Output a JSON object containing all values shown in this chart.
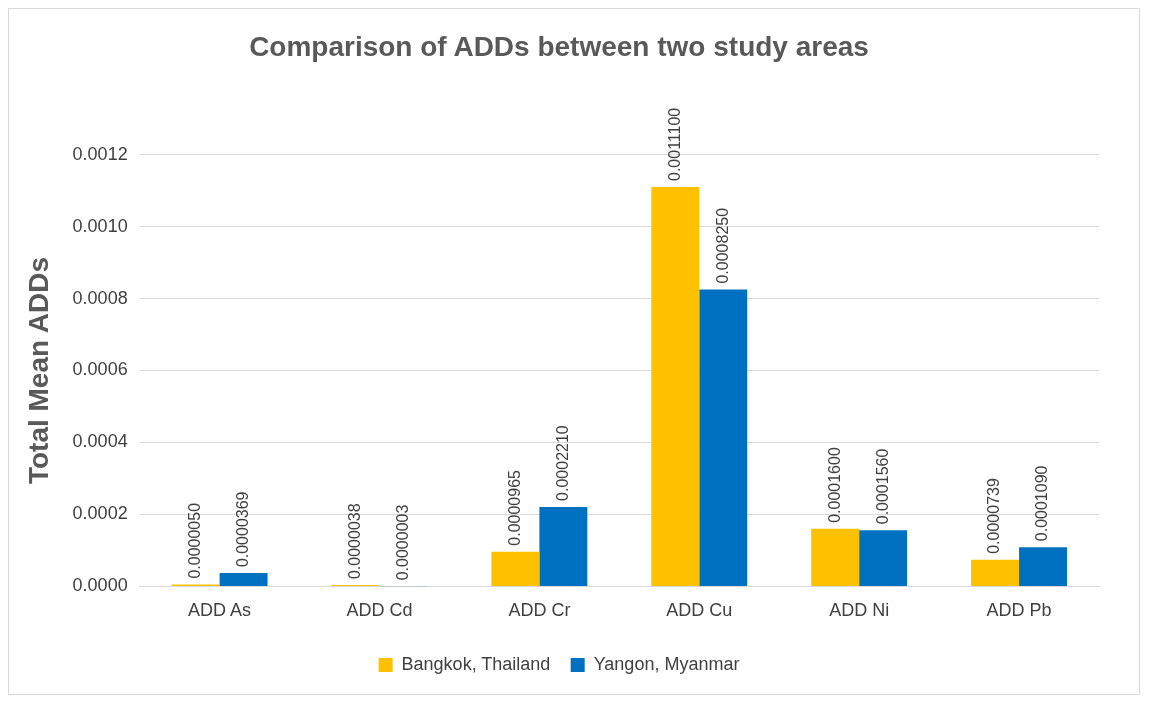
{
  "chart_data": {
    "type": "bar",
    "title": "Comparison of ADDs between two study areas",
    "ylabel": "Total Mean ADDs",
    "categories": [
      "ADD As",
      "ADD Cd",
      "ADD Cr",
      "ADD Cu",
      "ADD Ni",
      "ADD Pb"
    ],
    "series": [
      {
        "name": "Bangkok, Thailand",
        "color": "#ffc000",
        "values": [
          5e-06,
          3.8e-06,
          9.65e-05,
          0.00111,
          0.00016,
          7.39e-05
        ],
        "value_labels": [
          "0.0000050",
          "0.0000038",
          "0.0000965",
          "0.0011100",
          "0.0001600",
          "0.0000739"
        ]
      },
      {
        "name": "Yangon, Myanmar",
        "color": "#0070c0",
        "values": [
          3.69e-05,
          3e-07,
          0.000221,
          0.000825,
          0.000156,
          0.000109
        ],
        "value_labels": [
          "0.0000369",
          "0.0000003",
          "0.0002210",
          "0.0008250",
          "0.0001560",
          "0.0001090"
        ]
      }
    ],
    "ylim": [
      0,
      0.0012
    ],
    "yticks": [
      {
        "value": 0,
        "label": "0.0000"
      },
      {
        "value": 0.0002,
        "label": "0.0002"
      },
      {
        "value": 0.0004,
        "label": "0.0004"
      },
      {
        "value": 0.0006,
        "label": "0.0006"
      },
      {
        "value": 0.0008,
        "label": "0.0008"
      },
      {
        "value": 0.001,
        "label": "0.0010"
      },
      {
        "value": 0.0012,
        "label": "0.0012"
      }
    ],
    "grid": "y",
    "legend": "bottom"
  }
}
